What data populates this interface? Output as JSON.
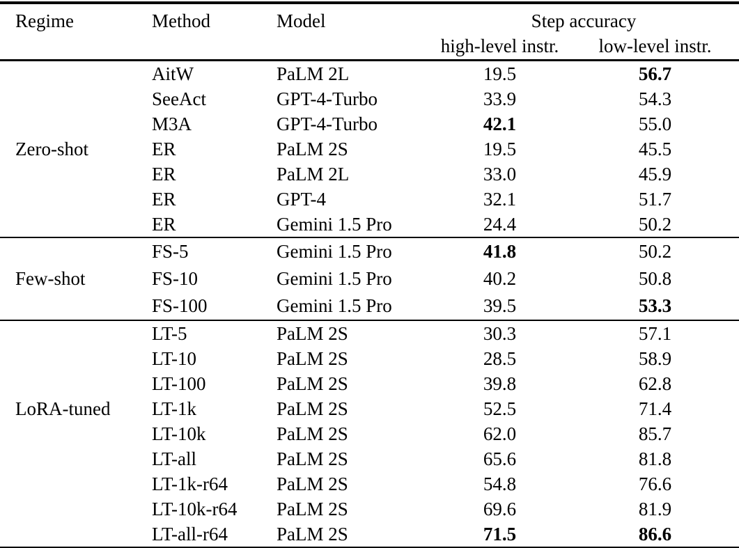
{
  "page": {
    "background": "#ffffff",
    "text_color": "#000000"
  },
  "table": {
    "header": {
      "regime": "Regime",
      "method": "Method",
      "model": "Model",
      "group": "Step accuracy",
      "sub_high": "high-level instr.",
      "sub_low": "low-level instr."
    },
    "sections": [
      {
        "regime": "Zero-shot",
        "regime_row_index": 3,
        "rows": [
          {
            "method": "AitW",
            "model": "PaLM 2L",
            "high": "19.5",
            "low": "56.7",
            "bold": [
              "low"
            ]
          },
          {
            "method": "SeeAct",
            "model": "GPT-4-Turbo",
            "high": "33.9",
            "low": "54.3",
            "bold": []
          },
          {
            "method": "M3A",
            "model": "GPT-4-Turbo",
            "high": "42.1",
            "low": "55.0",
            "bold": [
              "high"
            ]
          },
          {
            "method": "ER",
            "model": "PaLM 2S",
            "high": "19.5",
            "low": "45.5",
            "bold": []
          },
          {
            "method": "ER",
            "model": "PaLM 2L",
            "high": "33.0",
            "low": "45.9",
            "bold": []
          },
          {
            "method": "ER",
            "model": "GPT-4",
            "high": "32.1",
            "low": "51.7",
            "bold": []
          },
          {
            "method": "ER",
            "model": "Gemini 1.5 Pro",
            "high": "24.4",
            "low": "50.2",
            "bold": []
          }
        ]
      },
      {
        "regime": "Few-shot",
        "regime_row_index": 1,
        "rows": [
          {
            "method": "FS-5",
            "model": "Gemini 1.5 Pro",
            "high": "41.8",
            "low": "50.2",
            "bold": [
              "high"
            ]
          },
          {
            "method": "FS-10",
            "model": "Gemini 1.5 Pro",
            "high": "40.2",
            "low": "50.8",
            "bold": []
          },
          {
            "method": "FS-100",
            "model": "Gemini 1.5 Pro",
            "high": "39.5",
            "low": "53.3",
            "bold": [
              "low"
            ]
          }
        ]
      },
      {
        "regime": "LoRA-tuned",
        "regime_row_index": 3,
        "rows": [
          {
            "method": "LT-5",
            "model": "PaLM 2S",
            "high": "30.3",
            "low": "57.1",
            "bold": []
          },
          {
            "method": "LT-10",
            "model": "PaLM 2S",
            "high": "28.5",
            "low": "58.9",
            "bold": []
          },
          {
            "method": "LT-100",
            "model": "PaLM 2S",
            "high": "39.8",
            "low": "62.8",
            "bold": []
          },
          {
            "method": "LT-1k",
            "model": "PaLM 2S",
            "high": "52.5",
            "low": "71.4",
            "bold": []
          },
          {
            "method": "LT-10k",
            "model": "PaLM 2S",
            "high": "62.0",
            "low": "85.7",
            "bold": []
          },
          {
            "method": "LT-all",
            "model": "PaLM 2S",
            "high": "65.6",
            "low": "81.8",
            "bold": []
          },
          {
            "method": "LT-1k-r64",
            "model": "PaLM 2S",
            "high": "54.8",
            "low": "76.6",
            "bold": []
          },
          {
            "method": "LT-10k-r64",
            "model": "PaLM 2S",
            "high": "69.6",
            "low": "81.9",
            "bold": []
          },
          {
            "method": "LT-all-r64",
            "model": "PaLM 2S",
            "high": "71.5",
            "low": "86.6",
            "bold": [
              "high",
              "low"
            ]
          }
        ]
      }
    ]
  }
}
